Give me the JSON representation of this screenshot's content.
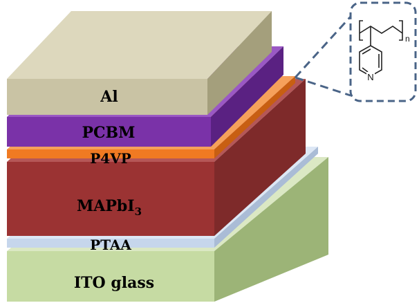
{
  "diagram": {
    "layers": [
      {
        "key": "al",
        "label": "Al",
        "color": "#c9c3a4"
      },
      {
        "key": "pcbm",
        "label": "PCBM",
        "color": "#7a32a8"
      },
      {
        "key": "p4vp",
        "label": "P4VP",
        "color": "#f07a22"
      },
      {
        "key": "mapbi3",
        "label": "MAPbI",
        "subscript": "3",
        "color": "#9b3333"
      },
      {
        "key": "ptaa",
        "label": "PTAA",
        "color": "#c6d6ec"
      },
      {
        "key": "ito",
        "label": "ITO glass",
        "color": "#c6dba3"
      }
    ],
    "inset": {
      "ring_atom": "N",
      "repeat_subscript": "n",
      "callout_color": "#4a6487"
    }
  }
}
